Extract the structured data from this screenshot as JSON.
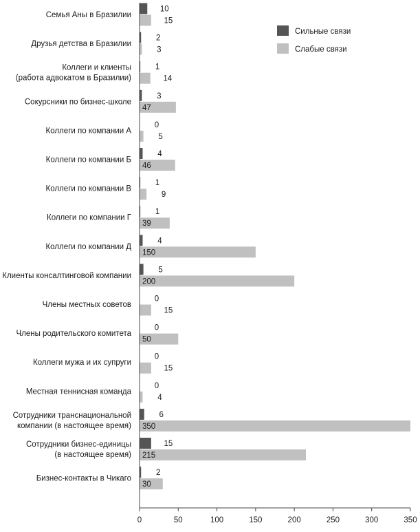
{
  "chart_data": {
    "type": "bar",
    "orientation": "horizontal",
    "title": "",
    "xlabel": "",
    "ylabel": "",
    "xlim": [
      0,
      350
    ],
    "xticks": [
      0,
      50,
      100,
      150,
      200,
      250,
      300,
      350
    ],
    "grid": false,
    "legend_position": "top-right",
    "categories": [
      [
        "Семья Аны в Бразилии"
      ],
      [
        "Друзья детства в Бразилии"
      ],
      [
        "Коллеги и клиенты",
        "(работа адвокатом в Бразилии)"
      ],
      [
        "Сокурсники по бизнес-школе"
      ],
      [
        "Коллеги по компании А"
      ],
      [
        "Коллеги по компании Б"
      ],
      [
        "Коллеги по компании В"
      ],
      [
        "Коллеги по компании Г"
      ],
      [
        "Коллеги по компании Д"
      ],
      [
        "Клиенты консалтинговой компании"
      ],
      [
        "Члены местных советов"
      ],
      [
        "Члены родительского комитета"
      ],
      [
        "Коллеги мужа и их супруги"
      ],
      [
        "Местная теннисная команда"
      ],
      [
        "Сотрудники транснациональной",
        "компании (в настоящее время)"
      ],
      [
        "Сотрудники бизнес-единицы",
        "(в настоящее время)"
      ],
      [
        "Бизнес-контакты в Чикаго"
      ]
    ],
    "series": [
      {
        "name": "Сильные связи",
        "color": "#555555",
        "values": [
          10,
          2,
          1,
          3,
          0,
          4,
          1,
          1,
          4,
          5,
          0,
          0,
          0,
          0,
          6,
          15,
          2
        ]
      },
      {
        "name": "Слабые связи",
        "color": "#c0c0c0",
        "values": [
          15,
          3,
          14,
          47,
          5,
          46,
          9,
          39,
          150,
          200,
          15,
          50,
          15,
          4,
          350,
          215,
          30
        ]
      }
    ]
  }
}
